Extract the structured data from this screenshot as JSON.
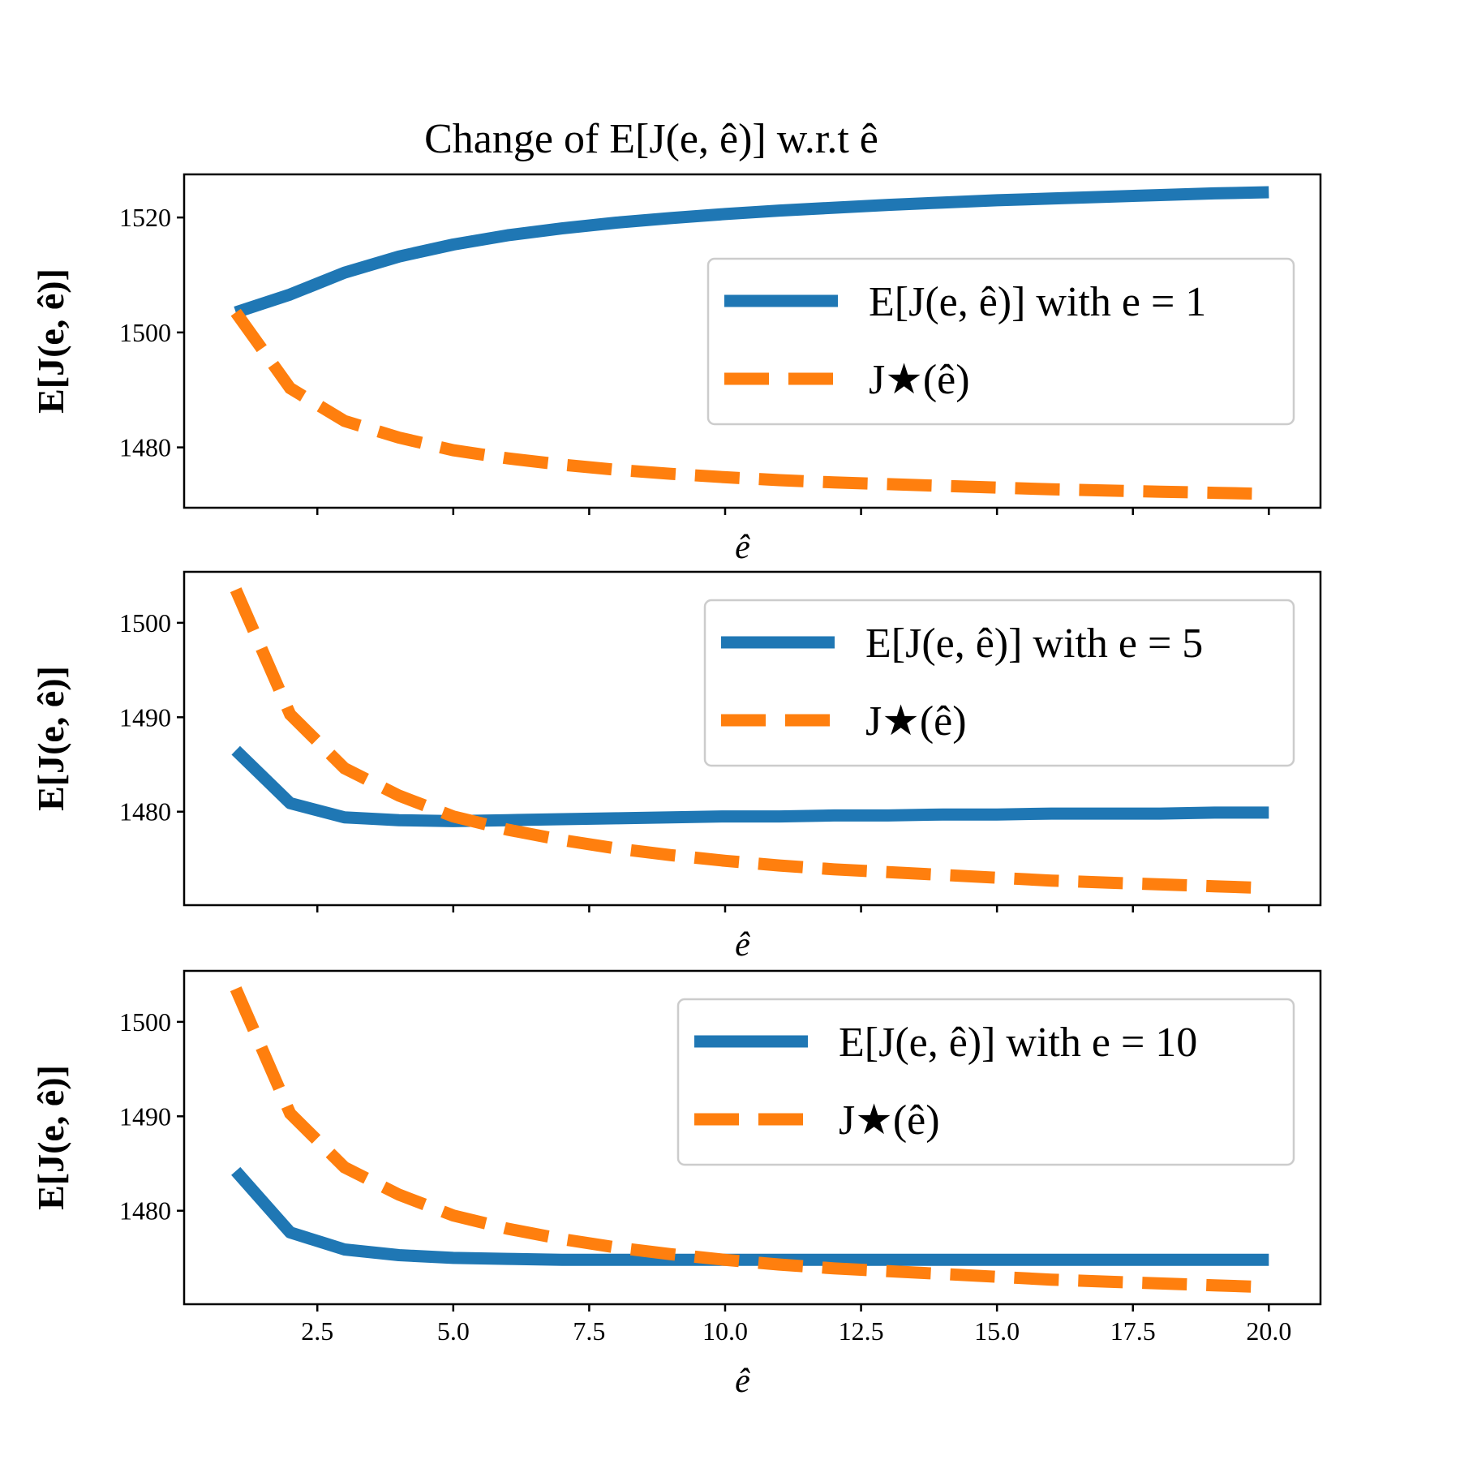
{
  "figure_title": "Change of E[J(e, ê)] w.r.t ê",
  "colors": {
    "series_solid": "#1f77b4",
    "series_dashed": "#ff7f0e"
  },
  "chart_data": [
    {
      "type": "line",
      "title": "Change of E[J(e, ê)] w.r.t ê",
      "xlabel": "ê",
      "ylabel": "E[J(e, ê)]",
      "xlim": [
        0.05,
        20.95
      ],
      "ylim": [
        1469.5,
        1527.5
      ],
      "xticks": [
        2.5,
        5.0,
        7.5,
        10.0,
        12.5,
        15.0,
        17.5,
        20.0
      ],
      "xtick_labels": [],
      "yticks": [
        1480,
        1500,
        1520
      ],
      "ytick_labels": [
        "1480",
        "1500",
        "1520"
      ],
      "grid": false,
      "legend_location": "center right",
      "x": [
        1,
        2,
        3,
        4,
        5,
        6,
        7,
        8,
        9,
        10,
        11,
        12,
        13,
        14,
        15,
        16,
        17,
        18,
        19,
        20
      ],
      "series": [
        {
          "name": "E[J(e, ê)] with e = 1",
          "style": "solid",
          "values": [
            1503.5,
            1506.6,
            1510.4,
            1513.2,
            1515.3,
            1516.9,
            1518.1,
            1519.1,
            1519.9,
            1520.6,
            1521.2,
            1521.7,
            1522.2,
            1522.6,
            1523.0,
            1523.3,
            1523.6,
            1523.9,
            1524.2,
            1524.4
          ]
        },
        {
          "name": "J★(ê)",
          "style": "dashed",
          "values": [
            1503.5,
            1490.3,
            1484.6,
            1481.7,
            1479.5,
            1478.1,
            1477.0,
            1476.1,
            1475.4,
            1474.8,
            1474.3,
            1473.9,
            1473.6,
            1473.3,
            1473.0,
            1472.7,
            1472.5,
            1472.3,
            1472.1,
            1471.9
          ]
        }
      ]
    },
    {
      "type": "line",
      "title": "",
      "xlabel": "ê",
      "ylabel": "E[J(e, ê)]",
      "xlim": [
        0.05,
        20.95
      ],
      "ylim": [
        1470.1,
        1505.4
      ],
      "xticks": [
        2.5,
        5.0,
        7.5,
        10.0,
        12.5,
        15.0,
        17.5,
        20.0
      ],
      "xtick_labels": [],
      "yticks": [
        1480,
        1490,
        1500
      ],
      "ytick_labels": [
        "1480",
        "1490",
        "1500"
      ],
      "grid": false,
      "legend_location": "upper right",
      "x": [
        1,
        2,
        3,
        4,
        5,
        6,
        7,
        8,
        9,
        10,
        11,
        12,
        13,
        14,
        15,
        16,
        17,
        18,
        19,
        20
      ],
      "series": [
        {
          "name": "E[J(e, ê)] with e = 5",
          "style": "solid",
          "values": [
            1486.5,
            1480.9,
            1479.4,
            1479.1,
            1479.0,
            1479.1,
            1479.2,
            1479.3,
            1479.4,
            1479.5,
            1479.5,
            1479.6,
            1479.6,
            1479.7,
            1479.7,
            1479.8,
            1479.8,
            1479.8,
            1479.9,
            1479.9
          ]
        },
        {
          "name": "J★(ê)",
          "style": "dashed",
          "values": [
            1503.5,
            1490.3,
            1484.6,
            1481.7,
            1479.5,
            1478.1,
            1477.0,
            1476.1,
            1475.4,
            1474.8,
            1474.3,
            1473.9,
            1473.6,
            1473.3,
            1473.0,
            1472.7,
            1472.5,
            1472.3,
            1472.1,
            1471.9
          ]
        }
      ]
    },
    {
      "type": "line",
      "title": "",
      "xlabel": "ê",
      "ylabel": "E[J(e, ê)]",
      "xlim": [
        0.05,
        20.95
      ],
      "ylim": [
        1470.1,
        1505.4
      ],
      "xticks": [
        2.5,
        5.0,
        7.5,
        10.0,
        12.5,
        15.0,
        17.5,
        20.0
      ],
      "xtick_labels": [
        "2.5",
        "5.0",
        "7.5",
        "10.0",
        "12.5",
        "15.0",
        "17.5",
        "20.0"
      ],
      "yticks": [
        1480,
        1490,
        1500
      ],
      "ytick_labels": [
        "1480",
        "1490",
        "1500"
      ],
      "grid": false,
      "legend_location": "upper right",
      "x": [
        1,
        2,
        3,
        4,
        5,
        6,
        7,
        8,
        9,
        10,
        11,
        12,
        13,
        14,
        15,
        16,
        17,
        18,
        19,
        20
      ],
      "series": [
        {
          "name": "E[J(e, ê)] with e = 10",
          "style": "solid",
          "values": [
            1484.2,
            1477.7,
            1475.9,
            1475.3,
            1475.0,
            1474.9,
            1474.8,
            1474.8,
            1474.8,
            1474.8,
            1474.8,
            1474.8,
            1474.8,
            1474.8,
            1474.8,
            1474.8,
            1474.8,
            1474.8,
            1474.8,
            1474.8
          ]
        },
        {
          "name": "J★(ê)",
          "style": "dashed",
          "values": [
            1503.5,
            1490.3,
            1484.6,
            1481.7,
            1479.5,
            1478.1,
            1477.0,
            1476.1,
            1475.4,
            1474.8,
            1474.3,
            1473.9,
            1473.6,
            1473.3,
            1473.0,
            1472.7,
            1472.5,
            1472.3,
            1472.1,
            1471.9
          ]
        }
      ]
    }
  ]
}
